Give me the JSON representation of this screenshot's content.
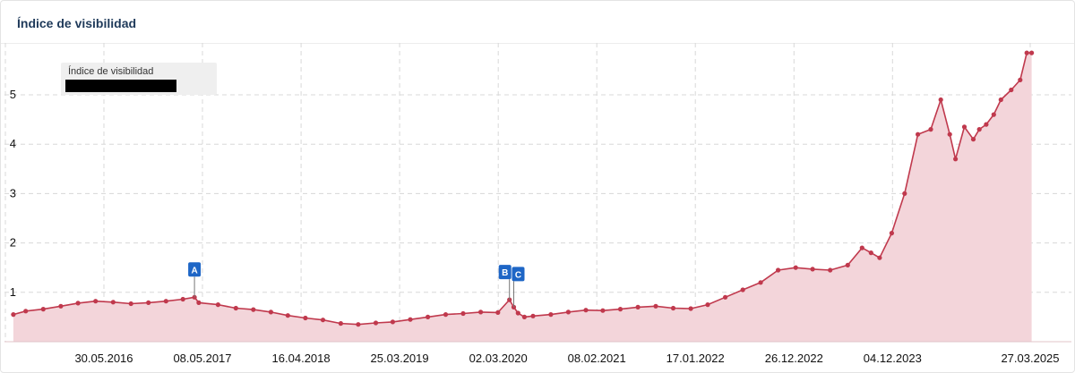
{
  "card": {
    "title": "Índice de visibilidad"
  },
  "legend": {
    "label": "Índice de visibilidad"
  },
  "colors": {
    "line": "#c0394d",
    "fill": "#f3d5da",
    "grid": "#d8d8d8",
    "marker": "#1e66c6"
  },
  "chart_data": {
    "type": "area",
    "title": "Índice de visibilidad",
    "xlabel": "",
    "ylabel": "",
    "x_ticks": [
      "30.05.2016",
      "08.05.2017",
      "16.04.2018",
      "25.03.2019",
      "02.03.2020",
      "08.02.2021",
      "17.01.2022",
      "26.12.2022",
      "04.12.2023",
      "27.03.2025"
    ],
    "y_ticks": [
      1,
      2,
      3,
      4,
      5
    ],
    "ylim": [
      0,
      5.9
    ],
    "grid": true,
    "series": [
      {
        "x": [
          "2015-07-20",
          "2015-09-01",
          "2015-11-01",
          "2016-01-01",
          "2016-03-01",
          "2016-05-01",
          "2016-07-01",
          "2016-09-01",
          "2016-11-01",
          "2017-01-01",
          "2017-03-01",
          "2017-04-10",
          "2017-04-25",
          "2017-07-01",
          "2017-09-01",
          "2017-11-01",
          "2018-01-01",
          "2018-03-01",
          "2018-05-01",
          "2018-07-01",
          "2018-09-01",
          "2018-11-01",
          "2019-01-01",
          "2019-03-01",
          "2019-05-01",
          "2019-07-01",
          "2019-09-01",
          "2019-11-01",
          "2020-01-01",
          "2020-03-01",
          "2020-04-10",
          "2020-04-25",
          "2020-05-10",
          "2020-06-01",
          "2020-07-01",
          "2020-09-01",
          "2020-11-01",
          "2021-01-01",
          "2021-03-01",
          "2021-05-01",
          "2021-07-01",
          "2021-09-01",
          "2021-11-01",
          "2022-01-01",
          "2022-03-01",
          "2022-05-01",
          "2022-07-01",
          "2022-09-01",
          "2022-11-01",
          "2023-01-01",
          "2023-03-01",
          "2023-05-01",
          "2023-07-01",
          "2023-08-20",
          "2023-09-20",
          "2023-10-20",
          "2023-12-01",
          "2024-01-15",
          "2024-03-01",
          "2024-04-15",
          "2024-05-20",
          "2024-06-20",
          "2024-07-10",
          "2024-08-10",
          "2024-09-10",
          "2024-10-01",
          "2024-10-25",
          "2024-11-20",
          "2024-12-15",
          "2025-01-20",
          "2025-02-20",
          "2025-03-15",
          "2025-04-01"
        ],
        "values": [
          0.55,
          0.62,
          0.66,
          0.72,
          0.78,
          0.82,
          0.8,
          0.77,
          0.79,
          0.82,
          0.86,
          0.9,
          0.79,
          0.75,
          0.68,
          0.65,
          0.6,
          0.53,
          0.48,
          0.44,
          0.37,
          0.35,
          0.38,
          0.4,
          0.45,
          0.5,
          0.55,
          0.57,
          0.6,
          0.59,
          0.85,
          0.7,
          0.58,
          0.5,
          0.52,
          0.55,
          0.6,
          0.64,
          0.63,
          0.66,
          0.7,
          0.72,
          0.68,
          0.67,
          0.75,
          0.9,
          1.05,
          1.2,
          1.45,
          1.5,
          1.47,
          1.45,
          1.55,
          1.9,
          1.8,
          1.7,
          2.2,
          3.0,
          4.2,
          4.3,
          4.9,
          4.2,
          3.7,
          4.35,
          4.1,
          4.3,
          4.4,
          4.6,
          4.9,
          5.1,
          5.3,
          5.85,
          5.85
        ]
      }
    ],
    "annotations": [
      {
        "label": "A",
        "x": "2017-04-10"
      },
      {
        "label": "B",
        "x": "2020-04-10"
      },
      {
        "label": "C",
        "x": "2020-04-25"
      }
    ]
  }
}
